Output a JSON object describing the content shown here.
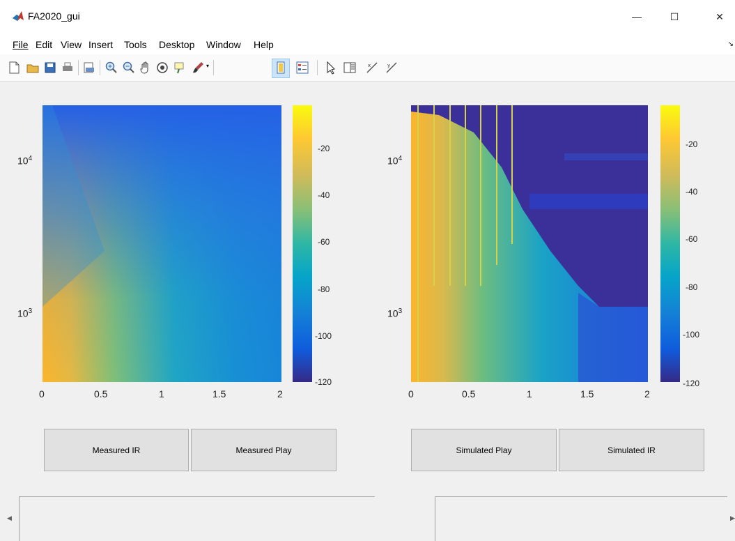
{
  "window": {
    "title": "FA2020_gui",
    "controls": [
      "minimize-icon",
      "maximize-icon",
      "close-icon"
    ],
    "minimize_glyph": "—",
    "maximize_glyph": "☐",
    "close_glyph": "✕"
  },
  "menu": [
    {
      "label": "File"
    },
    {
      "label": "Edit"
    },
    {
      "label": "View"
    },
    {
      "label": "Insert"
    },
    {
      "label": "Tools"
    },
    {
      "label": "Desktop"
    },
    {
      "label": "Window"
    },
    {
      "label": "Help"
    }
  ],
  "toolbar": {
    "icons": [
      "new-figure-icon",
      "open-file-icon",
      "save-icon",
      "print-icon",
      "print-preview-icon",
      "zoom-in-icon",
      "zoom-out-icon",
      "pan-icon",
      "rotate-3d-icon",
      "data-cursor-icon",
      "brush-icon",
      "brush-dropdown-icon",
      "colorbar-icon",
      "legend-icon",
      "edit-plot-icon",
      "property-inspector-icon",
      "link-plot-icon",
      "link-axes-icon"
    ]
  },
  "plots": [
    {
      "name": "measured",
      "x_ticks": [
        "0",
        "0.5",
        "1",
        "1.5",
        "2"
      ],
      "y_ticks": [
        {
          "base": "10",
          "exp": "4"
        },
        {
          "base": "10",
          "exp": "3"
        }
      ],
      "colorbar_ticks": [
        "-20",
        "-40",
        "-60",
        "-80",
        "-100",
        "-120"
      ],
      "colorbar_range": [
        -120,
        -5
      ]
    },
    {
      "name": "simulated",
      "x_ticks": [
        "0",
        "0.5",
        "1",
        "1.5",
        "2"
      ],
      "y_ticks": [
        {
          "base": "10",
          "exp": "4"
        },
        {
          "base": "10",
          "exp": "3"
        }
      ],
      "colorbar_ticks": [
        "-20",
        "-40",
        "-60",
        "-80",
        "-100",
        "-120"
      ],
      "colorbar_range": [
        -120,
        -5
      ]
    }
  ],
  "buttons": {
    "measured_ir": "Measured IR",
    "measured_play": "Measured Play",
    "simulated_play": "Simulated Play",
    "simulated_ir": "Simulated IR"
  },
  "colors": {
    "figure_bg": "#f0f0f0",
    "parula": [
      "#352a87",
      "#0f5cdd",
      "#1481d6",
      "#06a4ca",
      "#2eb7a4",
      "#87bf77",
      "#d1bb59",
      "#fec832",
      "#f9fb0e"
    ]
  }
}
